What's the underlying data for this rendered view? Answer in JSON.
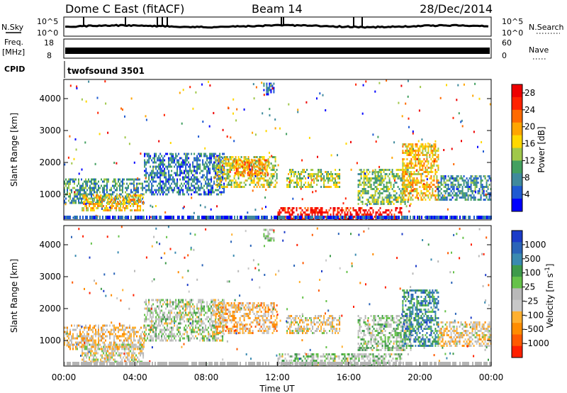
{
  "header": {
    "station": "Dome C East (fitACF)",
    "beam": "Beam 14",
    "date": "28/Dec/2014"
  },
  "strips": {
    "nsky_label": "N.Sky",
    "nsky_ticks": [
      "10^5",
      "10^0"
    ],
    "nsearch_label": "N.Search",
    "nsearch_ticks": [
      "10^5",
      "10^0"
    ],
    "freq_label_line1": "Freq.",
    "freq_label_line2": "[MHz]",
    "freq_ticks": [
      "18",
      "8"
    ],
    "nave_label": "Nave",
    "nave_ticks": [
      "60",
      "0"
    ],
    "cpid_label": "CPID",
    "cpid_value": "twofsound 3501"
  },
  "colors": {
    "power": [
      "#0000ff",
      "#1e5ad2",
      "#3f8a9c",
      "#43a060",
      "#a0c84a",
      "#ffd800",
      "#ffa500",
      "#ff6a00",
      "#ff2200",
      "#ee0000"
    ],
    "velocity": [
      "#1c3cc8",
      "#2a64b8",
      "#3a8ab0",
      "#3e9a4a",
      "#66c24a",
      "#b9b9b9",
      "#c8c8c8",
      "#ffb030",
      "#ff8c00",
      "#ff5a00",
      "#ff2000"
    ],
    "ground_scatter": "#b4b4b4"
  },
  "chart_data": [
    {
      "type": "heatmap",
      "title": "",
      "xlabel": "Time UT",
      "ylabel": "Slant Range [km]",
      "x_ticks": [
        "00:00",
        "04:00",
        "08:00",
        "12:00",
        "16:00",
        "20:00",
        "00:00"
      ],
      "y_ticks": [
        "1000",
        "2000",
        "3000",
        "4000"
      ],
      "ylim": [
        200,
        4600
      ],
      "xlim_hours": [
        0,
        24
      ],
      "colorbar": {
        "label": "Power [dB]",
        "ticks": [
          "4",
          "8",
          "12",
          "16",
          "20",
          "24",
          "28"
        ],
        "range": [
          0,
          30
        ]
      },
      "scatter_regions": [
        {
          "t_start": 0.0,
          "t_end": 4.5,
          "r_low": 700,
          "r_high": 1500,
          "value": 9
        },
        {
          "t_start": 1.0,
          "t_end": 4.5,
          "r_low": 500,
          "r_high": 1000,
          "value": 18
        },
        {
          "t_start": 4.5,
          "t_end": 9.0,
          "r_low": 1000,
          "r_high": 2300,
          "value": 7
        },
        {
          "t_start": 8.5,
          "t_end": 12.0,
          "r_low": 1200,
          "r_high": 2200,
          "value": 15
        },
        {
          "t_start": 9.5,
          "t_end": 11.5,
          "r_low": 1600,
          "r_high": 2100,
          "value": 20
        },
        {
          "t_start": 12.0,
          "t_end": 19.0,
          "r_low": 250,
          "r_high": 600,
          "value": 28
        },
        {
          "t_start": 12.5,
          "t_end": 15.5,
          "r_low": 1200,
          "r_high": 1800,
          "value": 14
        },
        {
          "t_start": 16.5,
          "t_end": 19.5,
          "r_low": 700,
          "r_high": 1800,
          "value": 12
        },
        {
          "t_start": 19.0,
          "t_end": 21.0,
          "r_low": 800,
          "r_high": 2600,
          "value": 18
        },
        {
          "t_start": 21.0,
          "t_end": 24.0,
          "r_low": 800,
          "r_high": 1600,
          "value": 8
        },
        {
          "t_start": 11.2,
          "t_end": 11.8,
          "r_low": 4100,
          "r_high": 4500,
          "value": 6
        }
      ]
    },
    {
      "type": "heatmap",
      "title": "",
      "xlabel": "Time UT",
      "ylabel": "Slant Range [km]",
      "x_ticks": [
        "00:00",
        "04:00",
        "08:00",
        "12:00",
        "16:00",
        "20:00",
        "00:00"
      ],
      "y_ticks": [
        "1000",
        "2000",
        "3000",
        "4000"
      ],
      "ylim": [
        200,
        4600
      ],
      "xlim_hours": [
        0,
        24
      ],
      "colorbar": {
        "label": "Velocity [m s^-1]",
        "ticks": [
          "1000",
          "500",
          "100",
          "25",
          "-25",
          "-100",
          "-500",
          "-1000"
        ],
        "range": [
          -1200,
          1200
        ]
      },
      "scatter_regions": [
        {
          "t_start": 0.0,
          "t_end": 4.5,
          "r_low": 700,
          "r_high": 1500,
          "value": -300
        },
        {
          "t_start": 1.0,
          "t_end": 4.5,
          "r_low": 300,
          "r_high": 900,
          "value": -150
        },
        {
          "t_start": 4.5,
          "t_end": 9.0,
          "r_low": 1000,
          "r_high": 2300,
          "value": 0
        },
        {
          "t_start": 8.5,
          "t_end": 12.0,
          "r_low": 1200,
          "r_high": 2200,
          "value": -400
        },
        {
          "t_start": 12.0,
          "t_end": 19.0,
          "r_low": 250,
          "r_high": 600,
          "value": 60
        },
        {
          "t_start": 12.5,
          "t_end": 15.5,
          "r_low": 1200,
          "r_high": 1800,
          "value": -200
        },
        {
          "t_start": 16.5,
          "t_end": 19.5,
          "r_low": 700,
          "r_high": 1800,
          "value": 80
        },
        {
          "t_start": 19.0,
          "t_end": 21.0,
          "r_low": 800,
          "r_high": 2600,
          "value": 600
        },
        {
          "t_start": 21.0,
          "t_end": 24.0,
          "r_low": 800,
          "r_high": 1600,
          "value": -250
        },
        {
          "t_start": 11.2,
          "t_end": 11.8,
          "r_low": 4100,
          "r_high": 4500,
          "value": 40
        }
      ]
    }
  ]
}
